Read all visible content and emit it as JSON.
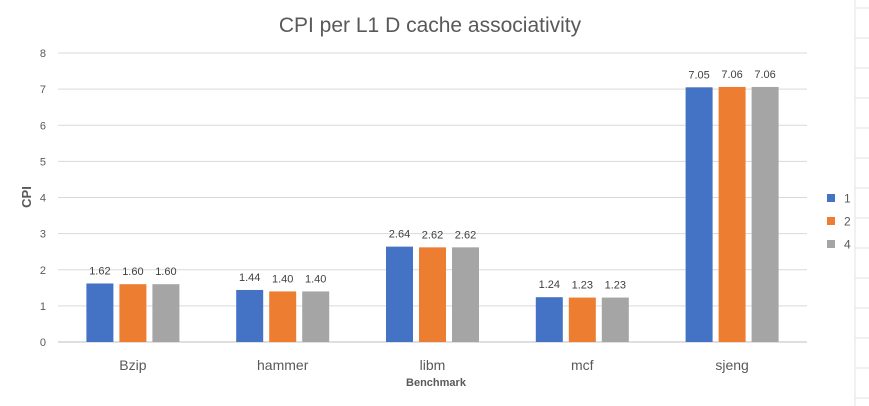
{
  "chart_data": {
    "type": "bar",
    "title": "CPI per L1 D cache associativity",
    "xlabel": "Benchmark",
    "ylabel": "CPI",
    "categories": [
      "Bzip",
      "hammer",
      "libm",
      "mcf",
      "sjeng"
    ],
    "series": [
      {
        "name": "1",
        "color": "#4472C4",
        "values": [
          1.62,
          1.44,
          2.64,
          1.24,
          7.05
        ],
        "labels": [
          "1.62",
          "1.44",
          "2.64",
          "1.24",
          "7.05"
        ]
      },
      {
        "name": "2",
        "color": "#ED7D31",
        "values": [
          1.6,
          1.4,
          2.62,
          1.23,
          7.06
        ],
        "labels": [
          "1.60",
          "1.40",
          "2.62",
          "1.23",
          "7.06"
        ]
      },
      {
        "name": "4",
        "color": "#A5A5A5",
        "values": [
          1.6,
          1.4,
          2.62,
          1.23,
          7.06
        ],
        "labels": [
          "1.60",
          "1.40",
          "2.62",
          "1.23",
          "7.06"
        ]
      }
    ],
    "ylim": [
      0,
      8
    ],
    "yticks": [
      0,
      1,
      2,
      3,
      4,
      5,
      6,
      7,
      8
    ],
    "grid": true,
    "legend_position": "right"
  }
}
